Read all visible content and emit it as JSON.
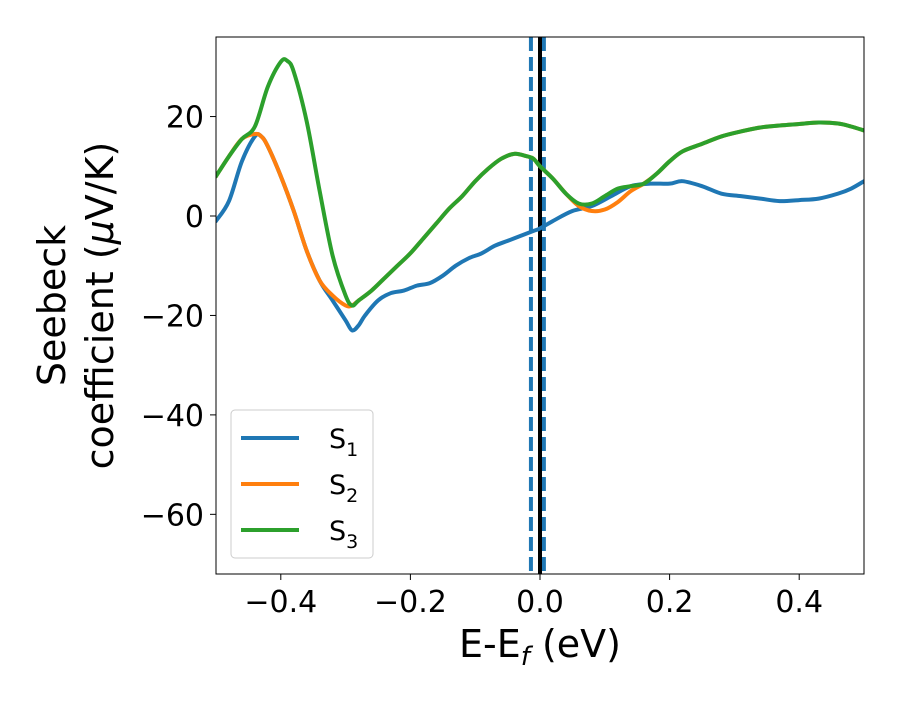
{
  "chart_data": {
    "type": "line",
    "title": "",
    "xlabel": "E-E",
    "xlabel_sub": "f",
    "xlabel_unit": " (eV)",
    "ylabel_line1": "Seebeck",
    "ylabel_line2_prefix": "coefficient  (",
    "ylabel_mu": "μ",
    "ylabel_line2_suffix": "V/K)",
    "xlim": [
      -0.5,
      0.5
    ],
    "ylim": [
      -72,
      36
    ],
    "xticks": [
      -0.4,
      -0.2,
      0.0,
      0.2,
      0.4
    ],
    "xtick_labels": [
      "−0.4",
      "−0.2",
      "0.0",
      "0.2",
      "0.4"
    ],
    "yticks": [
      20,
      0,
      -20,
      -40,
      -60
    ],
    "ytick_labels": [
      "20",
      "0",
      "−20",
      "−40",
      "−60"
    ],
    "grid": false,
    "legend_position": "lower-left",
    "vlines": [
      {
        "x": -0.014,
        "style": "dashed",
        "color": "#1f77b4"
      },
      {
        "x": 0.006,
        "style": "dashed",
        "color": "#1f77b4"
      },
      {
        "x": 0.0,
        "style": "solid",
        "color": "#000000"
      }
    ],
    "series": [
      {
        "name": "S",
        "sub": "1",
        "color": "#1f77b4",
        "x": [
          -0.5,
          -0.48,
          -0.46,
          -0.44,
          -0.43,
          -0.42,
          -0.4,
          -0.38,
          -0.36,
          -0.34,
          -0.32,
          -0.3,
          -0.29,
          -0.28,
          -0.27,
          -0.25,
          -0.23,
          -0.21,
          -0.19,
          -0.17,
          -0.15,
          -0.13,
          -0.11,
          -0.09,
          -0.07,
          -0.05,
          -0.03,
          -0.01,
          0.0,
          0.02,
          0.05,
          0.08,
          0.11,
          0.14,
          0.17,
          0.2,
          0.22,
          0.25,
          0.28,
          0.31,
          0.34,
          0.37,
          0.4,
          0.43,
          0.46,
          0.48,
          0.5
        ],
        "y": [
          -1,
          3,
          11,
          16,
          16,
          14,
          8,
          1,
          -7,
          -13,
          -17,
          -21,
          -23,
          -22,
          -20,
          -17,
          -15.5,
          -15,
          -14,
          -13.5,
          -12,
          -10,
          -8.5,
          -7.5,
          -6,
          -5,
          -4,
          -3,
          -2.5,
          -1,
          1,
          2,
          4,
          6,
          6.5,
          6.5,
          7,
          6,
          4.5,
          4,
          3.5,
          3,
          3.2,
          3.5,
          4.5,
          5.5,
          7
        ]
      },
      {
        "name": "S",
        "sub": "2",
        "color": "#ff7f0e",
        "x": [
          -0.5,
          -0.48,
          -0.46,
          -0.44,
          -0.43,
          -0.42,
          -0.4,
          -0.38,
          -0.36,
          -0.34,
          -0.32,
          -0.3,
          -0.29,
          -0.28,
          -0.26,
          -0.24,
          -0.22,
          -0.2,
          -0.18,
          -0.16,
          -0.14,
          -0.12,
          -0.1,
          -0.08,
          -0.06,
          -0.04,
          -0.02,
          -0.01,
          0.0,
          0.02,
          0.04,
          0.06,
          0.08,
          0.1,
          0.12,
          0.14,
          0.16,
          0.18,
          0.2,
          0.22,
          0.25,
          0.28,
          0.31,
          0.34,
          0.37,
          0.4,
          0.43,
          0.46,
          0.48,
          0.5
        ],
        "y": [
          8,
          12,
          15.5,
          16.5,
          16,
          14,
          8,
          1,
          -7,
          -13,
          -16,
          -18,
          -18,
          -17,
          -15,
          -12.5,
          -10,
          -7.5,
          -4.5,
          -1.5,
          1.5,
          4,
          7,
          9.5,
          11.5,
          12.5,
          12,
          11.5,
          10,
          7.5,
          4.5,
          2,
          1,
          1.3,
          2.8,
          5,
          6.5,
          8.5,
          11,
          13,
          14.5,
          16,
          17,
          17.8,
          18.2,
          18.5,
          18.8,
          18.6,
          18,
          17.2
        ]
      },
      {
        "name": "S",
        "sub": "3",
        "color": "#2ca02c",
        "x": [
          -0.5,
          -0.48,
          -0.46,
          -0.44,
          -0.42,
          -0.4,
          -0.39,
          -0.38,
          -0.36,
          -0.34,
          -0.32,
          -0.3,
          -0.29,
          -0.28,
          -0.26,
          -0.24,
          -0.22,
          -0.2,
          -0.18,
          -0.16,
          -0.14,
          -0.12,
          -0.1,
          -0.08,
          -0.06,
          -0.04,
          -0.02,
          -0.01,
          0.0,
          0.02,
          0.04,
          0.06,
          0.08,
          0.1,
          0.12,
          0.14,
          0.16,
          0.18,
          0.2,
          0.22,
          0.25,
          0.28,
          0.31,
          0.34,
          0.37,
          0.4,
          0.43,
          0.46,
          0.48,
          0.5
        ],
        "y": [
          8,
          12,
          15.5,
          18,
          26,
          31,
          31.2,
          29,
          19,
          5,
          -8,
          -16,
          -18,
          -17,
          -15,
          -12.5,
          -10,
          -7.5,
          -4.5,
          -1.5,
          1.5,
          4,
          7,
          9.5,
          11.5,
          12.5,
          12,
          11.5,
          10,
          7.5,
          4.5,
          2.5,
          2.5,
          4,
          5.5,
          6,
          6.5,
          8.5,
          11,
          13,
          14.5,
          16,
          17,
          17.8,
          18.2,
          18.5,
          18.8,
          18.6,
          18,
          17.2
        ]
      }
    ]
  }
}
